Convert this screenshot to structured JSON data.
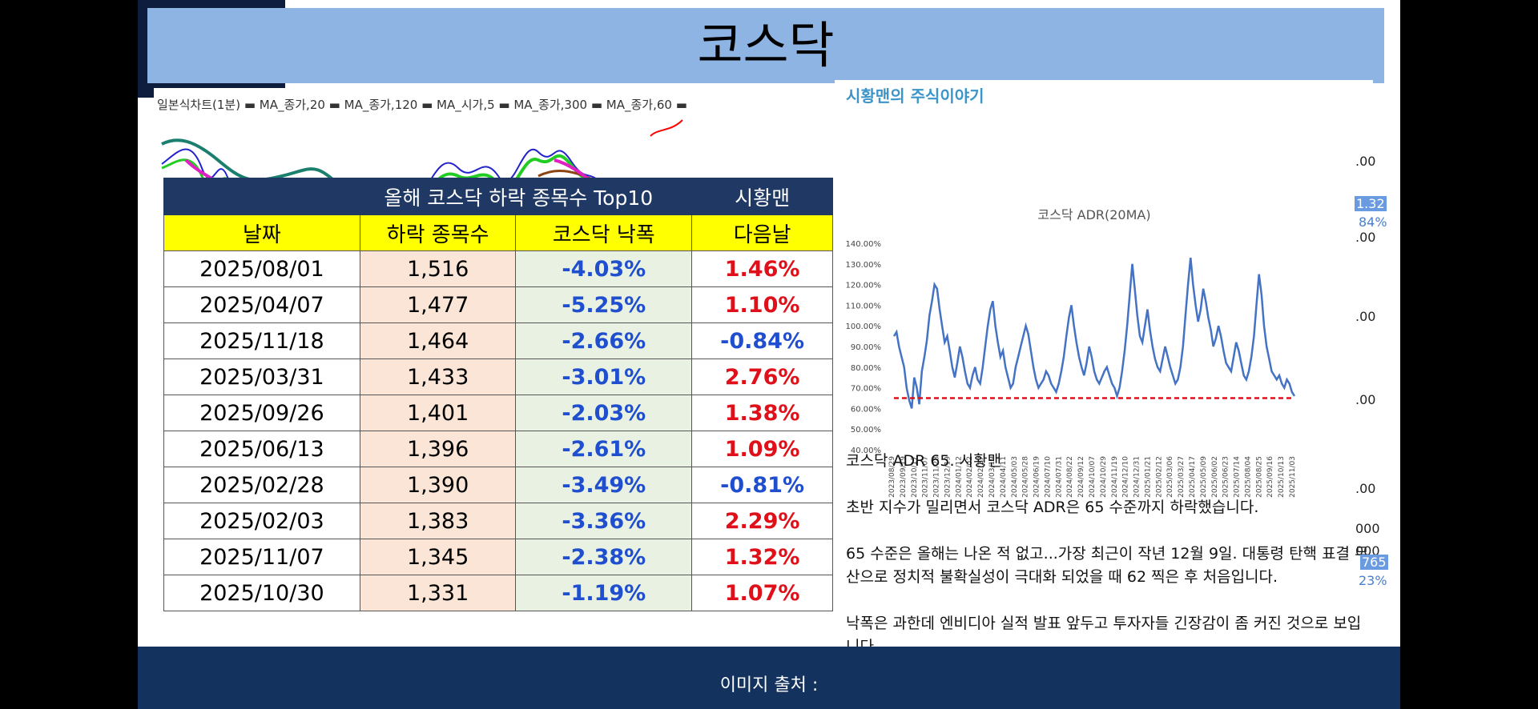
{
  "header": {
    "title": "코스닥"
  },
  "footer": {
    "image_source": "이미지 출처 :"
  },
  "stock_chart": {
    "legend": "일본식차트(1분) ▬ MA_종가,20 ▬ MA_종가,120 ▬ MA_시가,5 ▬ MA_종가,300 ▬ MA_종가,60 ▬"
  },
  "table": {
    "title": "올해 코스닥 하락 종목수 Top10",
    "author": "시황맨",
    "headers": [
      "날짜",
      "하락 종목수",
      "코스닥 낙폭",
      "다음날"
    ],
    "rows": [
      {
        "date": "2025/08/01",
        "count": "1,516",
        "drop": "-4.03%",
        "next": "1.46%"
      },
      {
        "date": "2025/04/07",
        "count": "1,477",
        "drop": "-5.25%",
        "next": "1.10%"
      },
      {
        "date": "2025/11/18",
        "count": "1,464",
        "drop": "-2.66%",
        "next": "-0.84%"
      },
      {
        "date": "2025/03/31",
        "count": "1,433",
        "drop": "-3.01%",
        "next": "2.76%"
      },
      {
        "date": "2025/09/26",
        "count": "1,401",
        "drop": "-2.03%",
        "next": "1.38%"
      },
      {
        "date": "2025/06/13",
        "count": "1,396",
        "drop": "-2.61%",
        "next": "1.09%"
      },
      {
        "date": "2025/02/28",
        "count": "1,390",
        "drop": "-3.49%",
        "next": "-0.81%"
      },
      {
        "date": "2025/02/03",
        "count": "1,383",
        "drop": "-3.36%",
        "next": "2.29%"
      },
      {
        "date": "2025/11/07",
        "count": "1,345",
        "drop": "-2.38%",
        "next": "1.32%"
      },
      {
        "date": "2025/10/30",
        "count": "1,331",
        "drop": "-1.19%",
        "next": "1.07%"
      }
    ]
  },
  "blog": {
    "name": "시황맨의 주식이야기",
    "paragraphs": [
      "코스닥 ADR 65. 시황맨",
      "초반 지수가 밀리면서 코스닥 ADR은 65 수준까지 하락했습니다.",
      "65 수준은 올해는 나온 적 없고...가장 최근이 작년 12월 9일. 대통령 탄핵 표결 무산으로 정치적 불확실성이 극대화 되었을 때 62 찍은 후 처음입니다.",
      "낙폭은 과한데 엔비디아 실적 발표 앞두고 투자자들 긴장감이 좀 커진 것으로 보입니다."
    ]
  },
  "right_axis": {
    "labels": [
      ".00",
      ".00",
      ".00",
      ".00",
      ".00",
      "000",
      "000"
    ],
    "blue_labels": [
      "1.32",
      "84%",
      "765",
      "23%"
    ]
  },
  "chart_data": {
    "type": "line",
    "title": "코스닥 ADR(20MA)",
    "ylim": [
      40,
      140
    ],
    "yticks": [
      "40.00%",
      "50.00%",
      "60.00%",
      "70.00%",
      "80.00%",
      "90.00%",
      "100.00%",
      "110.00%",
      "120.00%",
      "130.00%",
      "140.00%"
    ],
    "xticks": [
      "2023/08/29",
      "2023/09/19",
      "2023/10/17",
      "2023/11/07",
      "2023/11/28",
      "2023/12/19",
      "2024/01/12",
      "2024/02/02",
      "2024/02/27",
      "2024/03/19",
      "2024/04/11",
      "2024/05/03",
      "2024/05/28",
      "2024/06/19",
      "2024/07/10",
      "2024/07/31",
      "2024/08/22",
      "2024/09/12",
      "2024/10/07",
      "2024/10/29",
      "2024/11/19",
      "2024/12/10",
      "2024/12/31",
      "2025/01/21",
      "2025/02/12",
      "2025/03/06",
      "2025/03/27",
      "2025/04/17",
      "2025/05/09",
      "2025/06/02",
      "2025/06/23",
      "2025/07/14",
      "2025/08/04",
      "2025/08/25",
      "2025/09/16",
      "2025/10/13",
      "2025/11/03"
    ],
    "reference_line": 65,
    "series": [
      {
        "name": "ADR 20MA",
        "values": [
          95,
          97,
          90,
          85,
          80,
          70,
          64,
          60,
          75,
          70,
          62,
          78,
          85,
          93,
          105,
          112,
          120,
          118,
          108,
          100,
          92,
          95,
          88,
          80,
          75,
          82,
          90,
          85,
          78,
          72,
          70,
          76,
          80,
          74,
          72,
          80,
          90,
          100,
          108,
          112,
          100,
          92,
          85,
          88,
          80,
          75,
          70,
          72,
          80,
          85,
          90,
          95,
          100,
          96,
          88,
          80,
          74,
          70,
          72,
          74,
          78,
          76,
          72,
          70,
          68,
          72,
          78,
          85,
          95,
          104,
          110,
          100,
          92,
          85,
          80,
          76,
          82,
          90,
          85,
          78,
          74,
          72,
          75,
          78,
          80,
          76,
          72,
          70,
          66,
          70,
          78,
          88,
          100,
          115,
          130,
          118,
          105,
          95,
          92,
          100,
          108,
          98,
          90,
          84,
          80,
          78,
          84,
          90,
          85,
          80,
          76,
          72,
          74,
          80,
          90,
          105,
          120,
          133,
          120,
          110,
          102,
          108,
          118,
          112,
          104,
          98,
          90,
          94,
          100,
          95,
          88,
          82,
          80,
          78,
          85,
          92,
          88,
          82,
          76,
          74,
          78,
          85,
          95,
          110,
          125,
          115,
          100,
          90,
          84,
          78,
          76,
          74,
          76,
          72,
          70,
          74,
          72,
          68,
          66
        ]
      }
    ]
  }
}
